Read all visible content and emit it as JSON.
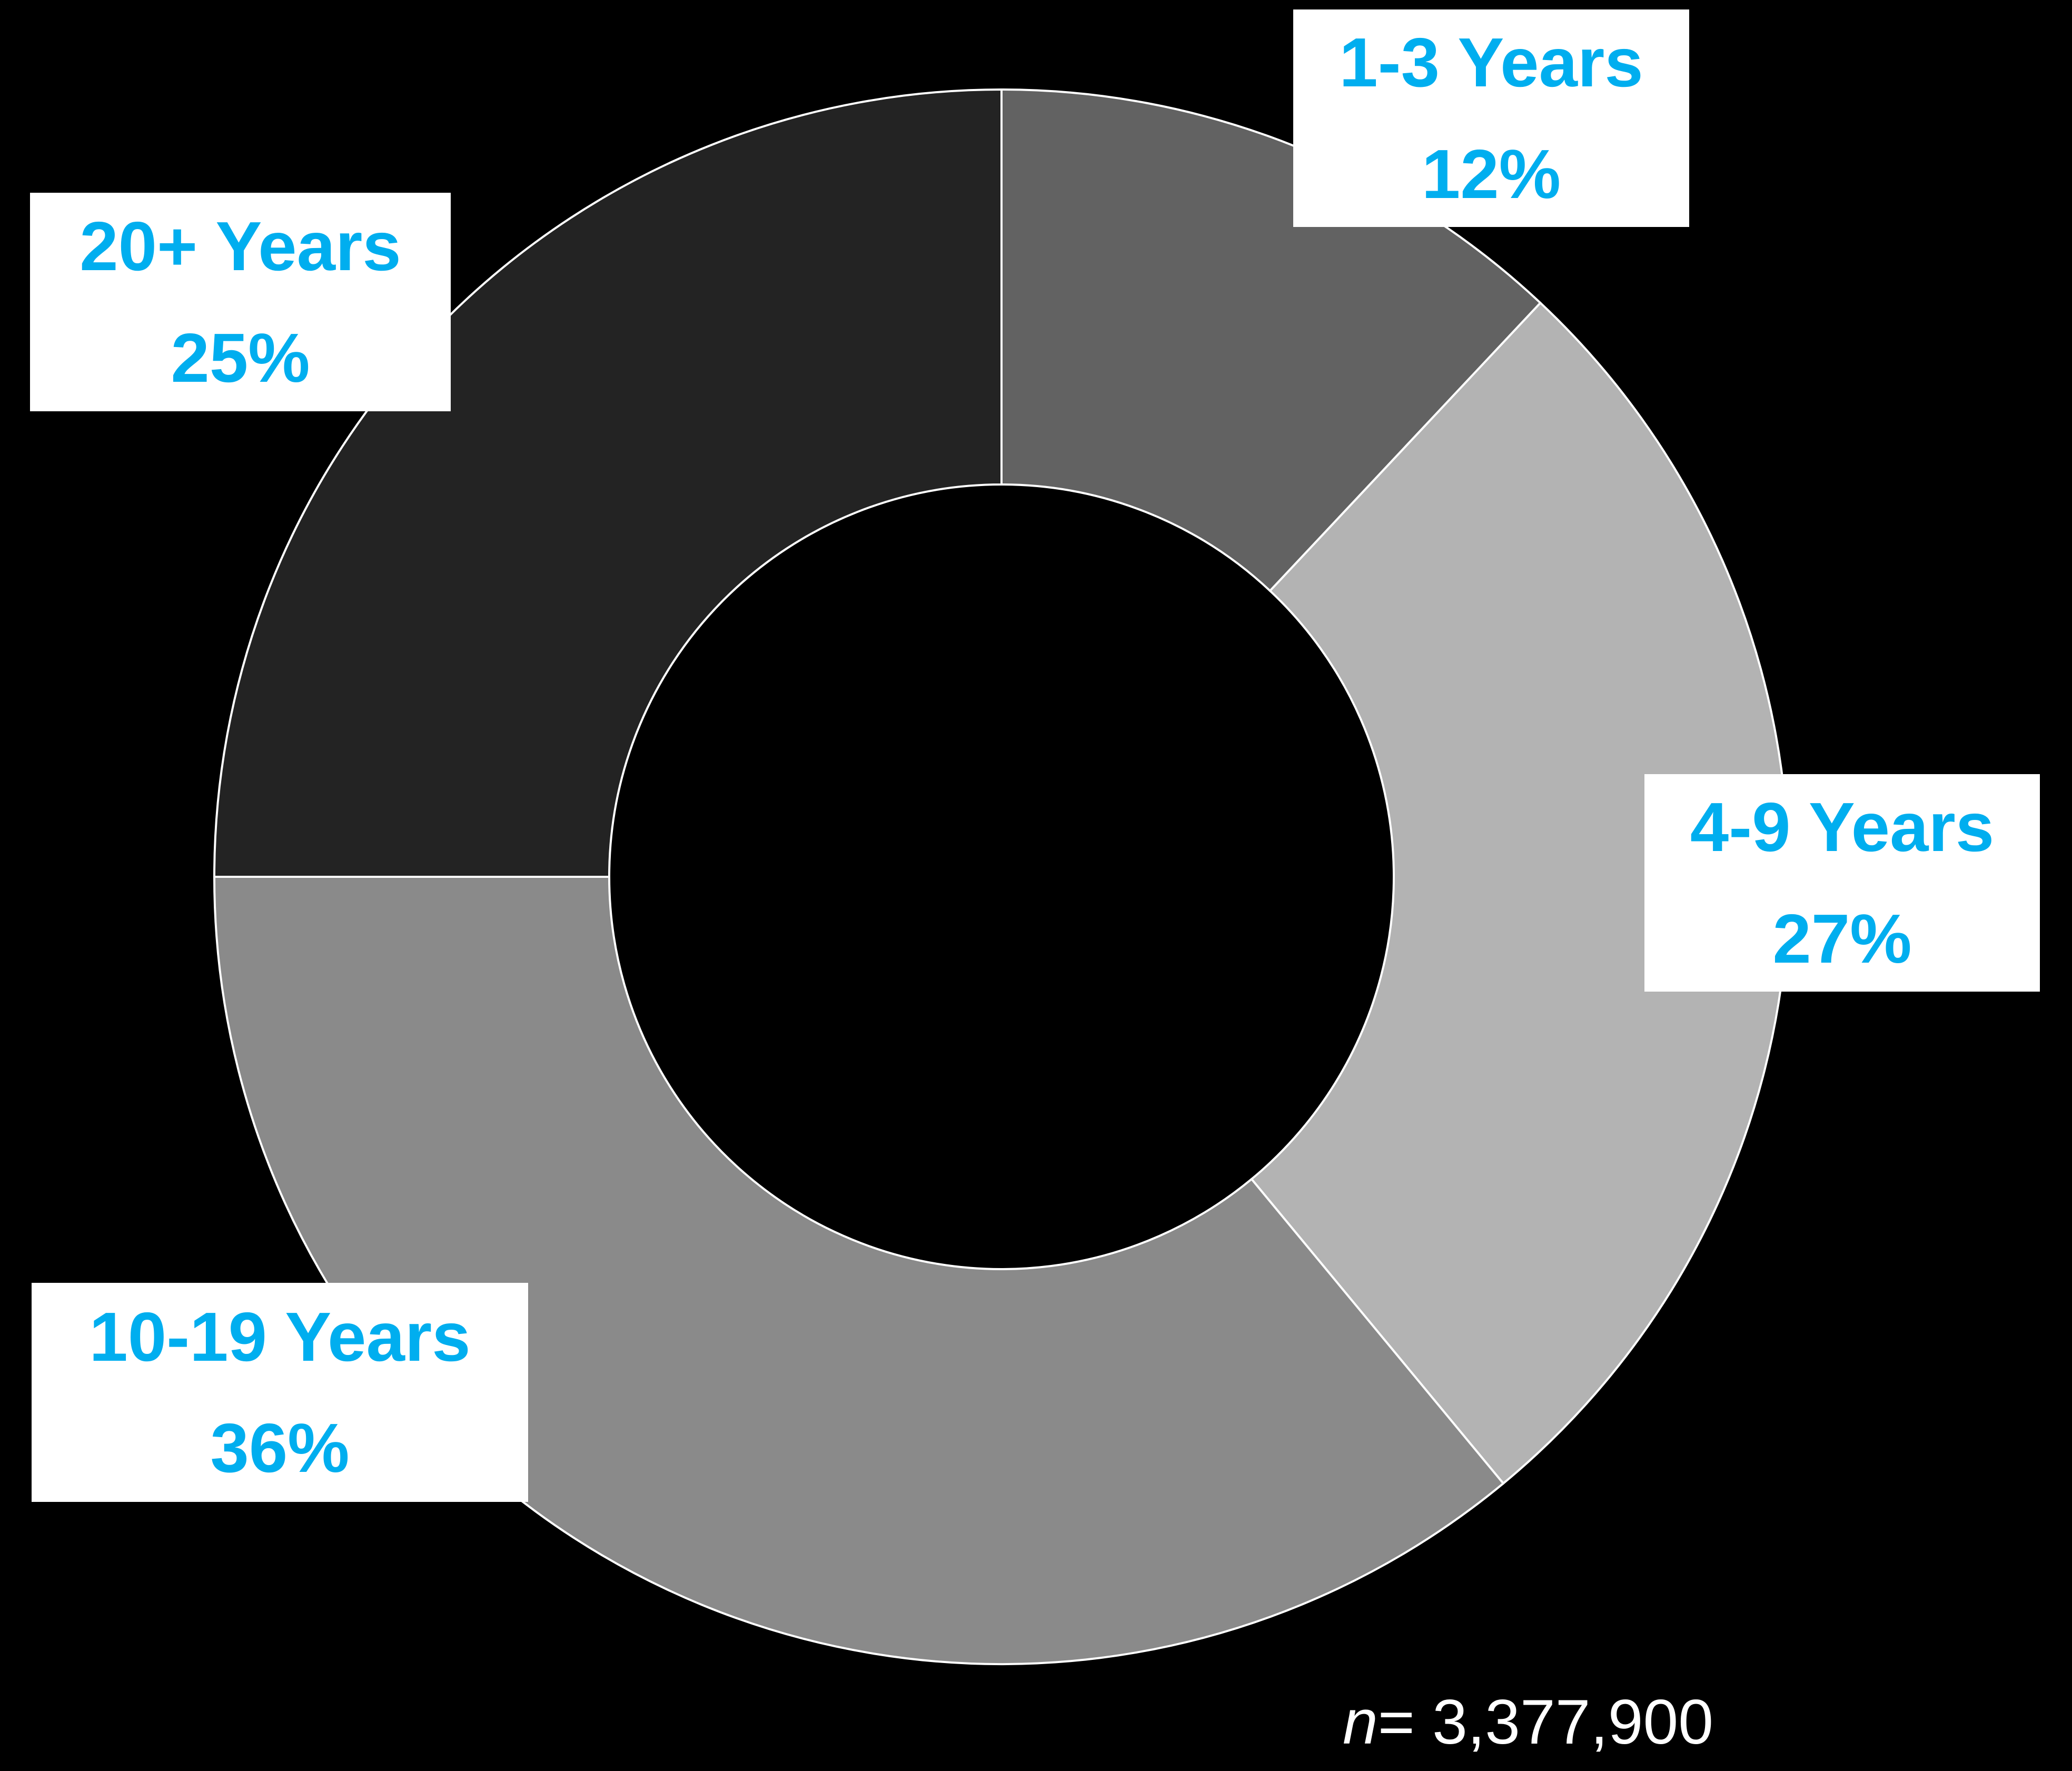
{
  "chart_data": {
    "type": "pie",
    "style": "donut",
    "start_angle_deg": 0,
    "direction": "clockwise",
    "categories": [
      "1-3 Years",
      "4-9 Years",
      "10-19 Years",
      "20+ Years"
    ],
    "values": [
      12,
      27,
      36,
      25
    ],
    "value_labels": [
      "12%",
      "27%",
      "36%",
      "25%"
    ],
    "colors": [
      "#626262",
      "#b3b3b3",
      "#8a8a8a",
      "#232323"
    ],
    "label_color": "#00aeef",
    "label_background": "#ffffff",
    "background": "#000000",
    "slice_border_color": "#ffffff"
  },
  "note": {
    "symbol": "n",
    "equals": "= ",
    "value": "3,377,900"
  }
}
